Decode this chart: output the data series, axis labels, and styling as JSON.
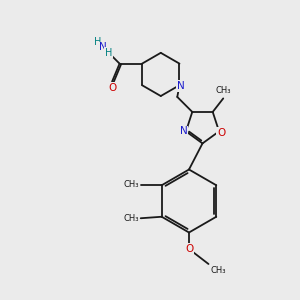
{
  "bg_color": "#ebebeb",
  "bond_color": "#1a1a1a",
  "N_color": "#1a1acc",
  "O_color": "#cc0000",
  "H_color": "#008080",
  "bond_width": 1.3,
  "figsize": [
    3.0,
    3.0
  ],
  "dpi": 100,
  "xlim": [
    0,
    10
  ],
  "ylim": [
    0,
    10
  ]
}
